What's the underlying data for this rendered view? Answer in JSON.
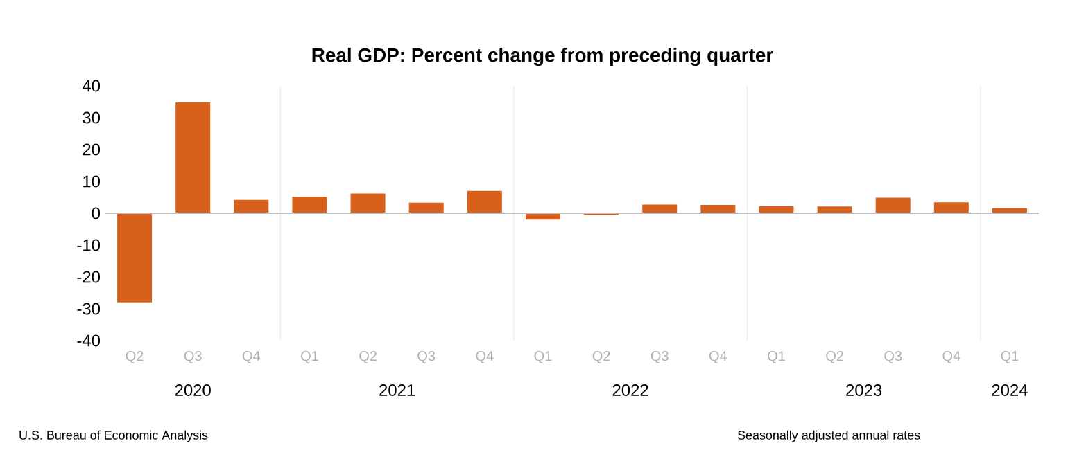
{
  "chart_data": {
    "type": "bar",
    "title": "Real GDP:  Percent change from preceding quarter",
    "categories": [
      "Q2",
      "Q3",
      "Q4",
      "Q1",
      "Q2",
      "Q3",
      "Q4",
      "Q1",
      "Q2",
      "Q3",
      "Q4",
      "Q1",
      "Q2",
      "Q3",
      "Q4",
      "Q1"
    ],
    "values": [
      -28.0,
      34.8,
      4.2,
      5.2,
      6.2,
      3.3,
      7.0,
      -2.0,
      -0.6,
      2.7,
      2.6,
      2.2,
      2.1,
      4.9,
      3.4,
      1.6
    ],
    "color": "#d9601a",
    "ylim": [
      -40,
      40
    ],
    "yticks": [
      -40,
      -30,
      -20,
      -10,
      0,
      10,
      20,
      30,
      40
    ],
    "annotations": [
      "2020",
      "2021",
      "2022",
      "2023",
      "2024",
      "U.S. Bureau of Economic Analysis",
      "Seasonally adjusted annual rates"
    ]
  }
}
